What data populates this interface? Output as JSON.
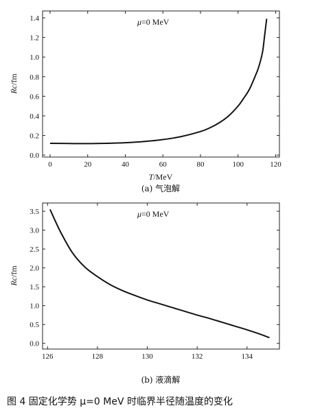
{
  "figure_caption": "图 4   固定化学势 μ=0 MeV 时临界半径随温度的变化",
  "chart_data": [
    {
      "type": "line",
      "panel_caption": "(a) 气泡解",
      "annotation": "μ=0 MeV",
      "annotation_mu": "μ",
      "annotation_rest": "=0 MeV",
      "xlabel": "T/MeV",
      "xlabel_var": "T",
      "xlabel_unit": "/MeV",
      "ylabel": "Rc/fm",
      "ylabel_var": "Rc",
      "ylabel_unit": "/fm",
      "xlim": [
        -4,
        122
      ],
      "ylim": [
        -0.02,
        1.47
      ],
      "xticks": [
        0,
        20,
        40,
        60,
        80,
        100,
        120
      ],
      "xtick_labels": [
        "0",
        "20",
        "40",
        "60",
        "80",
        "100",
        "120"
      ],
      "yticks": [
        0.0,
        0.2,
        0.4,
        0.6,
        0.8,
        1.0,
        1.2,
        1.4
      ],
      "ytick_labels": [
        "0.0",
        "0.2",
        "0.4",
        "0.6",
        "0.8",
        "1.0",
        "1.2",
        "1.4"
      ],
      "series": [
        {
          "x": [
            0,
            10,
            20,
            30,
            40,
            50,
            60,
            70,
            80,
            85,
            90,
            95,
            100,
            103,
            106,
            109,
            111,
            113,
            114,
            115.2
          ],
          "y": [
            0.12,
            0.118,
            0.117,
            0.12,
            0.126,
            0.138,
            0.158,
            0.19,
            0.24,
            0.278,
            0.33,
            0.4,
            0.5,
            0.58,
            0.67,
            0.8,
            0.9,
            1.05,
            1.2,
            1.39
          ]
        }
      ]
    },
    {
      "type": "line",
      "panel_caption": "(b) 液滴解",
      "annotation": "μ=0 MeV",
      "annotation_mu": "μ",
      "annotation_rest": "=0 MeV",
      "xlabel": "",
      "ylabel": "Rc/fm",
      "ylabel_var": "Rc",
      "ylabel_unit": "/fm",
      "xlim": [
        125.8,
        135.3
      ],
      "ylim": [
        -0.15,
        3.72
      ],
      "xticks": [
        126,
        128,
        130,
        132,
        134
      ],
      "xtick_labels": [
        "126",
        "128",
        "130",
        "132",
        "134"
      ],
      "yticks": [
        0.0,
        0.5,
        1.0,
        1.5,
        2.0,
        2.5,
        3.0,
        3.5
      ],
      "ytick_labels": [
        "0.0",
        "0.5",
        "1.0",
        "1.5",
        "2.0",
        "2.5",
        "3.0",
        "3.5"
      ],
      "series": [
        {
          "x": [
            126.1,
            126.5,
            127,
            127.5,
            128,
            128.5,
            129,
            129.5,
            130,
            130.5,
            131,
            131.5,
            132,
            132.5,
            133,
            133.5,
            134,
            134.5,
            134.9
          ],
          "y": [
            3.55,
            2.98,
            2.4,
            2.02,
            1.77,
            1.56,
            1.4,
            1.27,
            1.15,
            1.05,
            0.95,
            0.85,
            0.75,
            0.66,
            0.56,
            0.46,
            0.36,
            0.25,
            0.15
          ]
        }
      ]
    }
  ]
}
